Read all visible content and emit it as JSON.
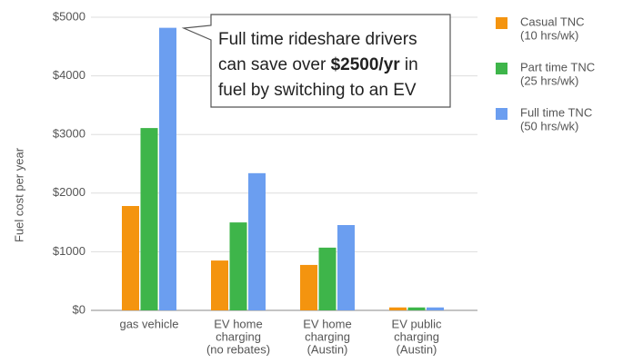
{
  "chart_data": {
    "type": "bar",
    "ylabel": "Fuel cost per year",
    "categories": [
      [
        "gas vehicle"
      ],
      [
        "EV home",
        "charging",
        "(no rebates)"
      ],
      [
        "EV home",
        "charging",
        "(Austin)"
      ],
      [
        "EV public",
        "charging",
        "(Austin)"
      ]
    ],
    "series": [
      {
        "name": [
          "Casual TNC",
          "(10 hrs/wk)"
        ],
        "color": "#f4940f",
        "values": [
          1780,
          850,
          775,
          50
        ]
      },
      {
        "name": [
          "Part time TNC",
          "(25 hrs/wk)"
        ],
        "color": "#3eb54a",
        "values": [
          3110,
          1500,
          1070,
          50
        ]
      },
      {
        "name": [
          "Full time TNC",
          "(50 hrs/wk)"
        ],
        "color": "#6b9ef0",
        "values": [
          4820,
          2340,
          1455,
          50
        ]
      }
    ],
    "ylim": [
      0,
      5000
    ],
    "yticks": [
      {
        "value": 0,
        "label": "$0"
      },
      {
        "value": 1000,
        "label": "$1000"
      },
      {
        "value": 2000,
        "label": "$2000"
      },
      {
        "value": 3000,
        "label": "$3000"
      },
      {
        "value": 4000,
        "label": "$4000"
      },
      {
        "value": 5000,
        "label": "$5000"
      }
    ],
    "grid": true,
    "legend": "right",
    "annotation": {
      "line1": "Full time rideshare drivers",
      "line2_before": "can save over ",
      "line2_bold": "$2500/yr",
      "line2_after": " in",
      "line3": "fuel by switching to an EV"
    }
  }
}
